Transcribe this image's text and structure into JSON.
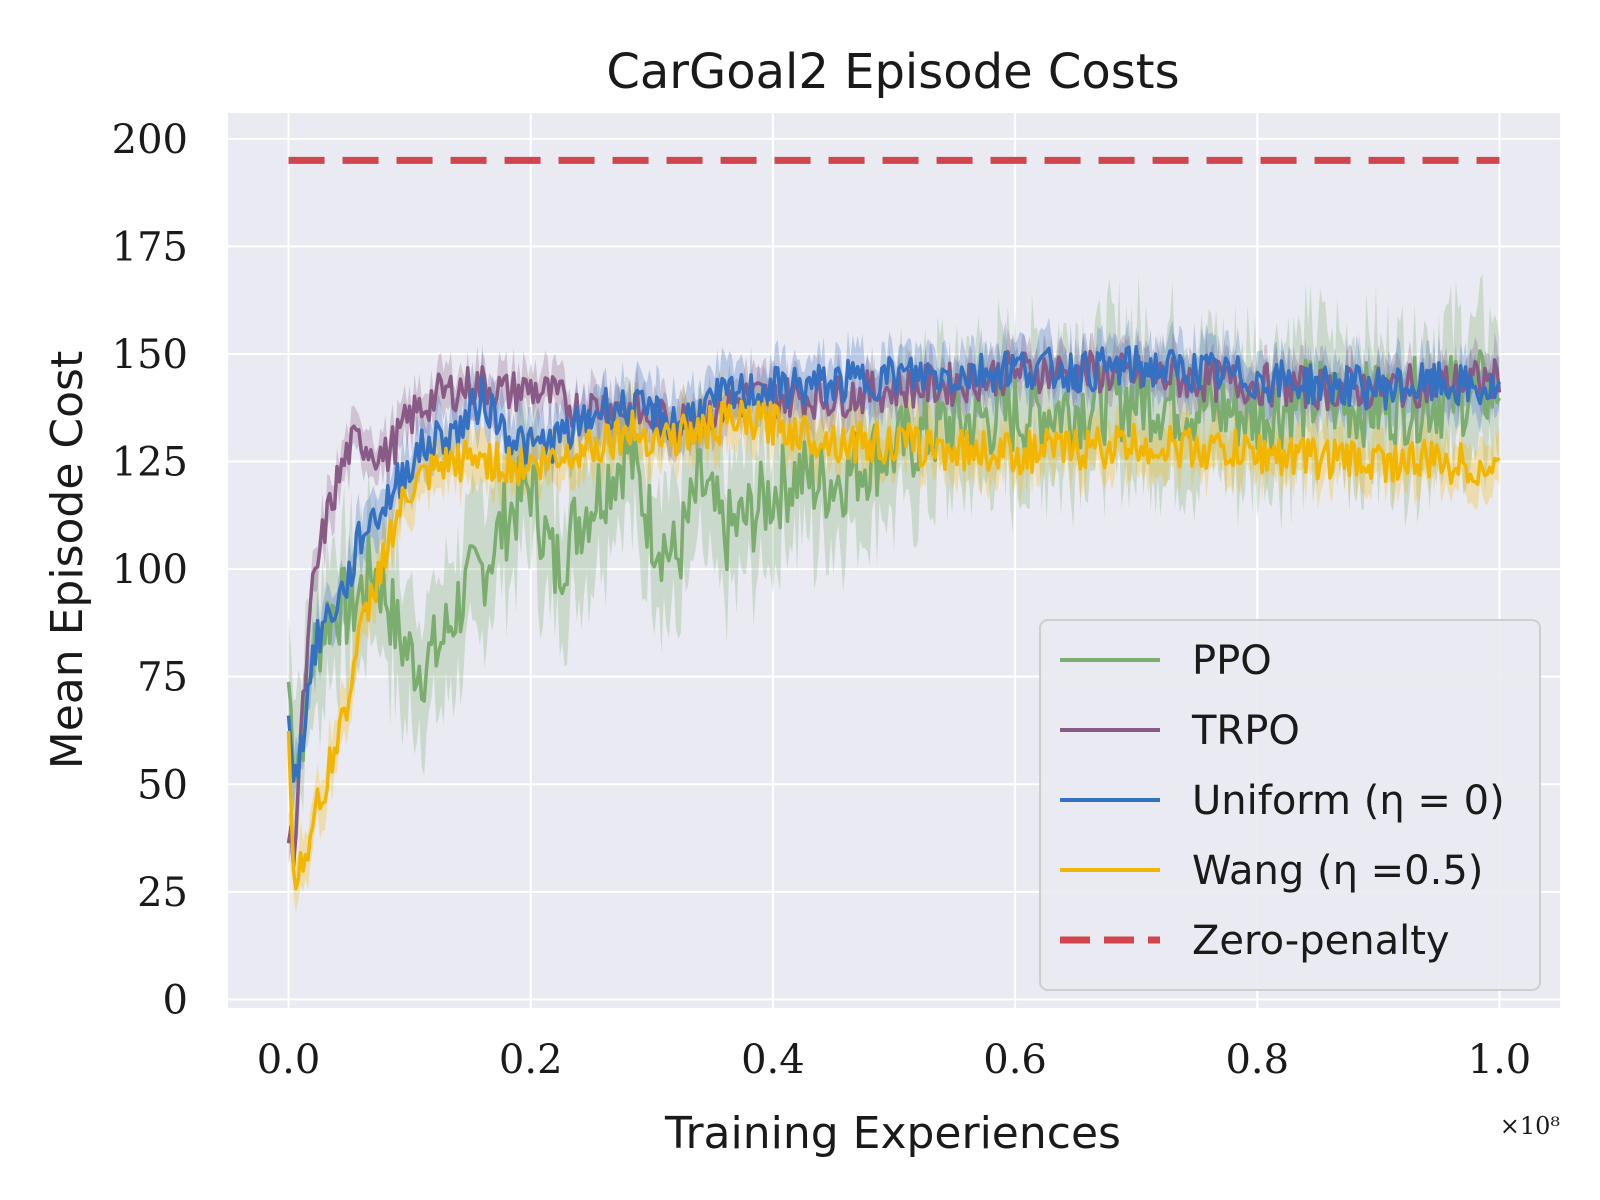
{
  "chart_data": {
    "type": "line",
    "title": "CarGoal2 Episode Costs",
    "xlabel": "Training Experiences",
    "ylabel": "Mean Episode Cost",
    "x_multiplier": "×10⁸",
    "xlim": [
      -0.05,
      1.05
    ],
    "ylim": [
      -2,
      206
    ],
    "x_ticks": [
      0.0,
      0.2,
      0.4,
      0.6,
      0.8,
      1.0
    ],
    "x_tick_labels": [
      "0.0",
      "0.2",
      "0.4",
      "0.6",
      "0.8",
      "1.0"
    ],
    "y_ticks": [
      0,
      25,
      50,
      75,
      100,
      125,
      150,
      175,
      200
    ],
    "y_tick_labels": [
      "0",
      "25",
      "50",
      "75",
      "100",
      "125",
      "150",
      "175",
      "200"
    ],
    "grid": true,
    "legend_position": "lower-right",
    "series": [
      {
        "name": "PPO",
        "color": "#7aad6e",
        "x": [
          0,
          0.005,
          0.01,
          0.02,
          0.03,
          0.04,
          0.05,
          0.06,
          0.07,
          0.08,
          0.09,
          0.1,
          0.11,
          0.12,
          0.13,
          0.14,
          0.15,
          0.16,
          0.18,
          0.2,
          0.22,
          0.24,
          0.26,
          0.28,
          0.3,
          0.32,
          0.34,
          0.36,
          0.38,
          0.4,
          0.42,
          0.44,
          0.46,
          0.48,
          0.5,
          0.55,
          0.6,
          0.65,
          0.7,
          0.75,
          0.8,
          0.85,
          0.9,
          0.95,
          1.0
        ],
        "values": [
          74,
          55,
          60,
          80,
          88,
          92,
          90,
          95,
          100,
          95,
          85,
          80,
          78,
          80,
          85,
          92,
          96,
          100,
          112,
          120,
          100,
          112,
          120,
          128,
          110,
          102,
          120,
          108,
          112,
          118,
          122,
          120,
          122,
          126,
          128,
          134,
          136,
          138,
          140,
          138,
          136,
          140,
          138,
          140,
          142
        ],
        "band": 18
      },
      {
        "name": "TRPO",
        "color": "#8a5a86",
        "x": [
          0,
          0.005,
          0.01,
          0.02,
          0.03,
          0.04,
          0.05,
          0.06,
          0.07,
          0.08,
          0.1,
          0.12,
          0.14,
          0.16,
          0.18,
          0.2,
          0.22,
          0.24,
          0.26,
          0.28,
          0.3,
          0.32,
          0.34,
          0.36,
          0.38,
          0.4,
          0.45,
          0.5,
          0.55,
          0.6,
          0.65,
          0.7,
          0.75,
          0.8,
          0.85,
          0.9,
          0.95,
          1.0
        ],
        "values": [
          37,
          35,
          60,
          95,
          110,
          120,
          128,
          130,
          128,
          126,
          135,
          140,
          142,
          143,
          141,
          142,
          140,
          137,
          138,
          137,
          135,
          134,
          136,
          138,
          140,
          140,
          140,
          142,
          143,
          146,
          146,
          145,
          144,
          143,
          142,
          142,
          143,
          144
        ],
        "band": 6
      },
      {
        "name": "Uniform (η = 0)",
        "color": "#3571c2",
        "x": [
          0,
          0.005,
          0.01,
          0.02,
          0.03,
          0.04,
          0.05,
          0.06,
          0.07,
          0.08,
          0.1,
          0.12,
          0.14,
          0.16,
          0.18,
          0.2,
          0.22,
          0.24,
          0.26,
          0.28,
          0.3,
          0.32,
          0.34,
          0.36,
          0.38,
          0.4,
          0.45,
          0.5,
          0.55,
          0.6,
          0.65,
          0.7,
          0.75,
          0.8,
          0.85,
          0.9,
          0.95,
          1.0
        ],
        "values": [
          70,
          50,
          58,
          80,
          88,
          92,
          98,
          108,
          112,
          115,
          125,
          130,
          132,
          140,
          132,
          128,
          130,
          133,
          138,
          137,
          136,
          134,
          137,
          140,
          141,
          142,
          143,
          145,
          145,
          147,
          146,
          147,
          146,
          144,
          143,
          142,
          143,
          141
        ],
        "band": 7
      },
      {
        "name": "Wang (η =0.5)",
        "color": "#f3b600",
        "x": [
          0,
          0.005,
          0.01,
          0.02,
          0.03,
          0.04,
          0.05,
          0.06,
          0.07,
          0.08,
          0.1,
          0.12,
          0.14,
          0.16,
          0.18,
          0.2,
          0.22,
          0.24,
          0.26,
          0.28,
          0.3,
          0.32,
          0.34,
          0.36,
          0.38,
          0.4,
          0.42,
          0.45,
          0.5,
          0.55,
          0.6,
          0.65,
          0.7,
          0.75,
          0.8,
          0.85,
          0.9,
          0.95,
          1.0
        ],
        "values": [
          65,
          24,
          32,
          40,
          50,
          60,
          72,
          85,
          95,
          105,
          118,
          122,
          125,
          126,
          124,
          124,
          125,
          128,
          130,
          132,
          131,
          131,
          132,
          134,
          134,
          134,
          132,
          130,
          129,
          128,
          127,
          128,
          129,
          128,
          127,
          126,
          125,
          125,
          123
        ],
        "band": 7
      },
      {
        "name": "Zero-penalty",
        "color": "#d1464d",
        "dashed": true,
        "x": [
          0,
          1.0
        ],
        "values": [
          195,
          195
        ],
        "band": 0
      }
    ]
  }
}
